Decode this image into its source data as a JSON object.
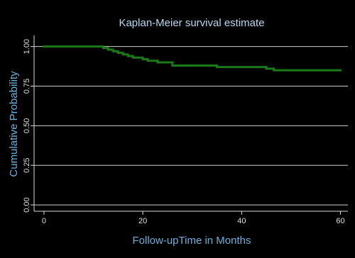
{
  "chart_data": {
    "type": "line",
    "step": "post",
    "title": "Kaplan-Meier survival estimate",
    "x_label": "Follow-upTime in Months",
    "y_label": "Cumulative Probability",
    "x": [
      0,
      12,
      13,
      14,
      15,
      16,
      17,
      18,
      20,
      21,
      23,
      26,
      35,
      45,
      46.5,
      60
    ],
    "values": [
      1.0,
      0.99,
      0.98,
      0.97,
      0.96,
      0.95,
      0.94,
      0.93,
      0.92,
      0.91,
      0.9,
      0.88,
      0.87,
      0.86,
      0.85,
      0.85
    ],
    "color": "#1a7a1a",
    "xlim": [
      -2,
      61.5
    ],
    "ylim": [
      -0.04,
      1.07
    ],
    "xticks": [
      0,
      20,
      40,
      60
    ],
    "yticks": [
      {
        "value": 0,
        "label": "0.00"
      },
      {
        "value": 0.25,
        "label": "0.25"
      },
      {
        "value": 0.5,
        "label": "0.50"
      },
      {
        "value": 0.75,
        "label": "0.75"
      },
      {
        "value": 1,
        "label": "1.00"
      }
    ],
    "grid": true
  }
}
